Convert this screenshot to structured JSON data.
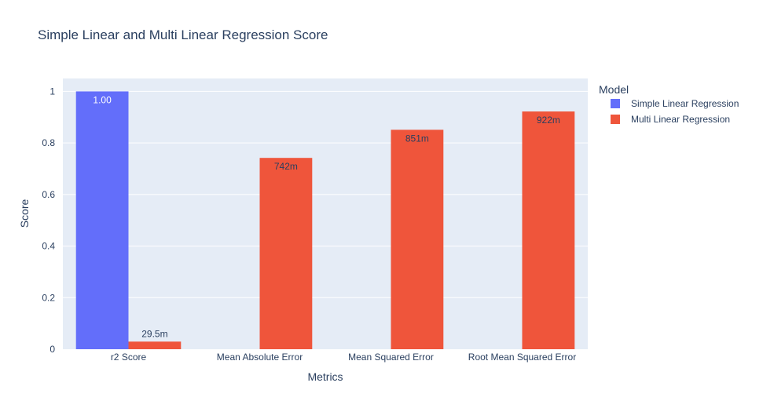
{
  "chart_data": {
    "type": "bar",
    "title": "Simple Linear and Multi Linear Regression Score",
    "xlabel": "Metrics",
    "ylabel": "Score",
    "ylim": [
      0,
      1.05
    ],
    "yticks": [
      "0",
      "0.2",
      "0.4",
      "0.6",
      "0.8",
      "1"
    ],
    "ytick_values": [
      0,
      0.2,
      0.4,
      0.6,
      0.8,
      1
    ],
    "categories": [
      "r2 Score",
      "Mean Absolute Error",
      "Mean Squared Error",
      "Root Mean Squared Error"
    ],
    "legend_title": "Model",
    "legend_position": "top-right",
    "grid": true,
    "barmode": "group",
    "colors": {
      "background": "#E5ECF6",
      "grid": "#ffffff",
      "text": "#2a3f5f"
    },
    "series": [
      {
        "name": "Simple Linear Regression",
        "color": "#636EFA",
        "values": [
          1.0,
          null,
          null,
          null
        ],
        "labels": [
          "1.00",
          "",
          "",
          ""
        ]
      },
      {
        "name": "Multi Linear Regression",
        "color": "#EF553B",
        "values": [
          0.0295,
          0.742,
          0.851,
          0.922
        ],
        "labels": [
          "29.5m",
          "742m",
          "851m",
          "922m"
        ]
      }
    ]
  }
}
